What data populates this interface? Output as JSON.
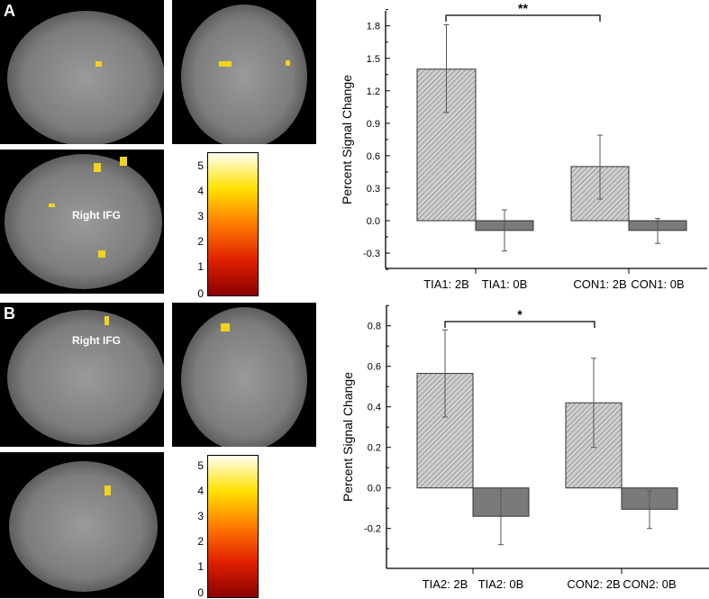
{
  "panels": [
    {
      "label": "A",
      "region_label": "Right IFG",
      "colorbar_ticks": [
        "0",
        "1",
        "2",
        "3",
        "4",
        "5"
      ]
    },
    {
      "label": "B",
      "region_label": "Right IFG",
      "colorbar_ticks": [
        "0",
        "1",
        "2",
        "3",
        "4",
        "5"
      ]
    }
  ],
  "colors": {
    "hatched_bar": "#c8c8c8",
    "solid_bar": "#7a7a7a",
    "activation": "#f2d21a"
  },
  "chart_data": [
    {
      "type": "bar",
      "ylabel": "Percent Signal Change",
      "ylim": [
        -0.45,
        1.95
      ],
      "yticks": [
        -0.3,
        0.0,
        0.3,
        0.6,
        0.9,
        1.2,
        1.5,
        1.8
      ],
      "ytick_labels": [
        "-0.3",
        "0.0",
        "0.3",
        "0.6",
        "0.9",
        "1.2",
        "1.5",
        "1.8"
      ],
      "categories": [
        "TIA1: 2B",
        "TIA1: 0B",
        "CON1: 2B",
        "CON1: 0B"
      ],
      "values": [
        1.4,
        -0.09,
        0.5,
        -0.09
      ],
      "error_low": [
        1.0,
        -0.28,
        0.2,
        -0.21
      ],
      "error_high": [
        1.81,
        0.1,
        0.79,
        0.02
      ],
      "fill": [
        "hatched",
        "solid",
        "hatched",
        "solid"
      ],
      "significance": {
        "from": "TIA1: 2B",
        "to": "CON1: 2B",
        "label": "**"
      }
    },
    {
      "type": "bar",
      "ylabel": "Percent Signal Change",
      "ylim": [
        -0.4,
        0.9
      ],
      "yticks": [
        -0.2,
        0.0,
        0.2,
        0.4,
        0.6,
        0.8
      ],
      "ytick_labels": [
        "-0.2",
        "0.0",
        "0.2",
        "0.4",
        "0.6",
        "0.8"
      ],
      "categories": [
        "TIA2: 2B",
        "TIA2: 0B",
        "CON2: 2B",
        "CON2: 0B"
      ],
      "values": [
        0.565,
        -0.14,
        0.42,
        -0.105
      ],
      "error_low": [
        0.35,
        -0.28,
        0.2,
        -0.2
      ],
      "error_high": [
        0.78,
        0.0,
        0.64,
        -0.015
      ],
      "fill": [
        "hatched",
        "solid",
        "hatched",
        "solid"
      ],
      "significance": {
        "from": "TIA2: 2B",
        "to": "CON2: 2B",
        "label": "*"
      }
    }
  ]
}
